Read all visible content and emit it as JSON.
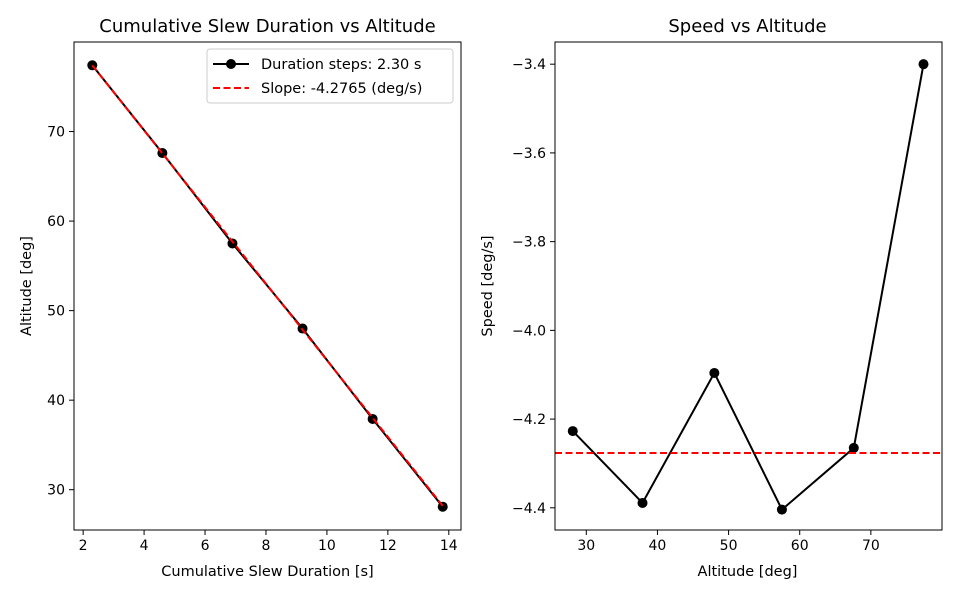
{
  "chart_data": [
    {
      "type": "line",
      "title": "Cumulative Slew Duration vs Altitude",
      "xlabel": "Cumulative Slew Duration [s]",
      "ylabel": "Altitude [deg]",
      "xlim": [
        1.7,
        14.4
      ],
      "ylim": [
        25.5,
        80.0
      ],
      "xticks": [
        2,
        4,
        6,
        8,
        10,
        12,
        14
      ],
      "yticks": [
        30,
        40,
        50,
        60,
        70
      ],
      "legend_position": "top-right",
      "grid": false,
      "series": [
        {
          "name": "Duration steps: 2.30 s",
          "style": "line-with-markers",
          "color": "#000000",
          "x": [
            2.3,
            4.6,
            6.9,
            9.2,
            11.5,
            13.8
          ],
          "y": [
            77.4,
            67.6,
            57.5,
            48.0,
            37.9,
            28.1
          ]
        },
        {
          "name": "Slope: -4.2765 (deg/s)",
          "style": "dashed",
          "color": "#ff0000",
          "x": [
            2.3,
            13.8
          ],
          "y": [
            77.4,
            28.2
          ]
        }
      ]
    },
    {
      "type": "line",
      "title": "Speed vs Altitude",
      "xlabel": "Altitude [deg]",
      "ylabel": "Speed [deg/s]",
      "xlim": [
        25.6,
        80.0
      ],
      "ylim": [
        -4.45,
        -3.35
      ],
      "xticks": [
        30,
        40,
        50,
        60,
        70
      ],
      "yticks": [
        -4.4,
        -4.2,
        -4.0,
        -3.8,
        -3.6,
        -3.4
      ],
      "ytick_labels": [
        "−4.4",
        "−4.2",
        "−4.0",
        "−3.8",
        "−3.6",
        "−3.4"
      ],
      "grid": false,
      "series": [
        {
          "style": "line-with-markers",
          "color": "#000000",
          "x": [
            28.1,
            37.9,
            48.0,
            57.5,
            67.6,
            77.4
          ],
          "y": [
            -4.227,
            -4.389,
            -4.096,
            -4.404,
            -4.265,
            -3.4
          ]
        },
        {
          "style": "dashed-hline",
          "color": "#ff0000",
          "y": -4.2765
        }
      ]
    }
  ]
}
